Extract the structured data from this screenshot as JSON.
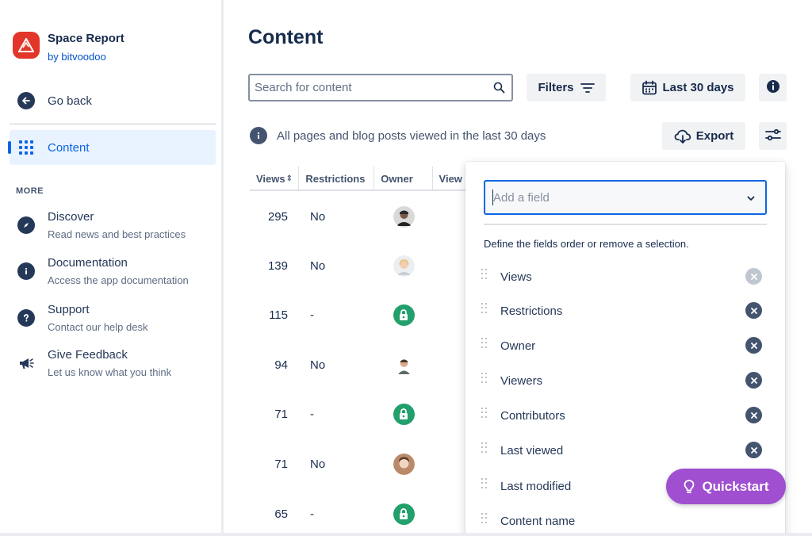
{
  "app": {
    "title": "Space Report",
    "subtitle": "by bitvoodoo",
    "brand_color": "#e2362a"
  },
  "sidebar": {
    "go_back": "Go back",
    "active_item": "Content",
    "more_label": "MORE",
    "more_items": [
      {
        "title": "Discover",
        "desc": "Read news and best practices",
        "icon": "compass-icon"
      },
      {
        "title": "Documentation",
        "desc": "Access the app documentation",
        "icon": "info-icon"
      },
      {
        "title": "Support",
        "desc": "Contact our help desk",
        "icon": "question-icon"
      },
      {
        "title": "Give Feedback",
        "desc": "Let us know what you think",
        "icon": "megaphone-icon"
      }
    ]
  },
  "main": {
    "title": "Content",
    "search_placeholder": "Search for content",
    "filters_label": "Filters",
    "date_range_label": "Last 30 days",
    "export_label": "Export",
    "info_text": "All pages and blog posts viewed in the last 30 days"
  },
  "table": {
    "headers": [
      "Views",
      "Restrictions",
      "Owner",
      "View"
    ],
    "sort_indicator": "⇕",
    "rows": [
      {
        "views": "295",
        "restrictions": "No",
        "owner": "avatar"
      },
      {
        "views": "139",
        "restrictions": "No",
        "owner": "avatar"
      },
      {
        "views": "115",
        "restrictions": "-",
        "owner": "lock"
      },
      {
        "views": "94",
        "restrictions": "No",
        "owner": "avatar"
      },
      {
        "views": "71",
        "restrictions": "-",
        "owner": "lock"
      },
      {
        "views": "71",
        "restrictions": "No",
        "owner": "avatar"
      },
      {
        "views": "65",
        "restrictions": "-",
        "owner": "lock"
      }
    ]
  },
  "field_panel": {
    "add_field_placeholder": "Add a field",
    "hint": "Define the fields order or remove a selection.",
    "fields": [
      {
        "label": "Views",
        "removable": false
      },
      {
        "label": "Restrictions",
        "removable": true
      },
      {
        "label": "Owner",
        "removable": true
      },
      {
        "label": "Viewers",
        "removable": true
      },
      {
        "label": "Contributors",
        "removable": true
      },
      {
        "label": "Last viewed",
        "removable": true
      },
      {
        "label": "Last modified",
        "removable": true
      },
      {
        "label": "Content name",
        "removable": true
      }
    ]
  },
  "quickstart_label": "Quickstart",
  "colors": {
    "accent": "#0c66e4",
    "quickstart": "#9f4fcf",
    "lock_green": "#22a06b"
  }
}
